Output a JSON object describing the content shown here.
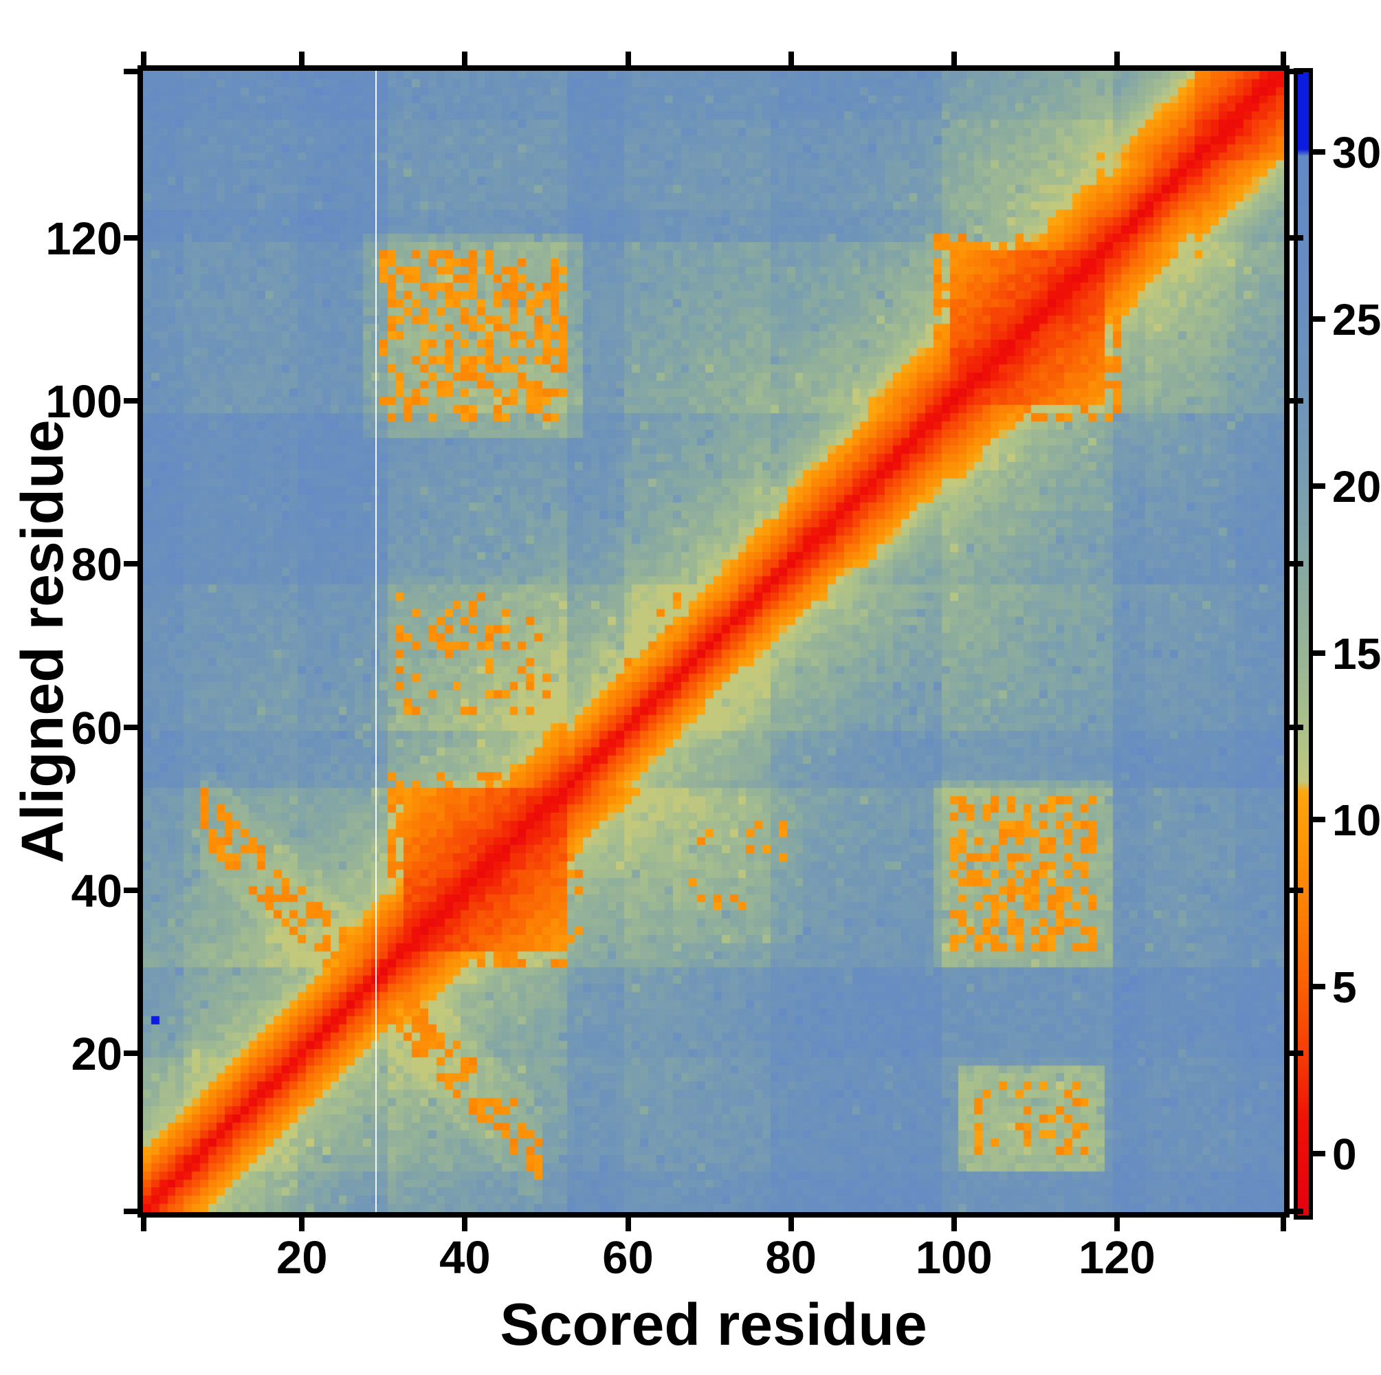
{
  "chart_data": {
    "type": "heatmap",
    "title": "",
    "xlabel": "Scored residue",
    "ylabel": "Aligned residue",
    "n_residues": 140,
    "x_range": [
      1,
      140
    ],
    "y_range": [
      1,
      140
    ],
    "x_ticks": [
      20,
      40,
      60,
      80,
      100,
      120
    ],
    "y_ticks": [
      20,
      40,
      60,
      80,
      100,
      120
    ],
    "grid": false,
    "legend_position": "right-colorbar",
    "colorbar": {
      "ticks": [
        0,
        5,
        10,
        15,
        20,
        25,
        30
      ],
      "vmin": -1.86,
      "vmax": 32.4,
      "orange_green_break": 11.0,
      "blue_cap_start": 30.1
    },
    "colormap_stops": [
      [
        -1.9,
        "#e4000f"
      ],
      [
        1.0,
        "#f01106"
      ],
      [
        3.0,
        "#f63d05"
      ],
      [
        5.0,
        "#fa5f04"
      ],
      [
        7.0,
        "#fc7c04"
      ],
      [
        9.0,
        "#fd9206"
      ],
      [
        10.85,
        "#fda50e"
      ],
      [
        11.15,
        "#c3c87c"
      ],
      [
        12.5,
        "#aec289"
      ],
      [
        14.5,
        "#9cb794"
      ],
      [
        16.5,
        "#8ead9d"
      ],
      [
        18.5,
        "#81a4a8"
      ],
      [
        20.5,
        "#779bb2"
      ],
      [
        23.0,
        "#6d93bb"
      ],
      [
        26.0,
        "#678dc2"
      ],
      [
        29.9,
        "#6389c7"
      ],
      [
        30.1,
        "#0c1be0"
      ],
      [
        32.4,
        "#0c1be0"
      ]
    ],
    "regions": {
      "low_error_diagonal": "red band along main diagonal, value near 0-3",
      "domain_blocks": [
        [
          33,
          52
        ],
        [
          100,
          118
        ]
      ],
      "off_diagonal_orange_patches": [
        {
          "x": [
            30,
            52
          ],
          "y": [
            98,
            118
          ]
        },
        {
          "x": [
            100,
            117
          ],
          "y": [
            33,
            51
          ]
        },
        {
          "x": [
            103,
            116
          ],
          "y": [
            8,
            16
          ]
        },
        {
          "x": [
            32,
            50
          ],
          "y": [
            62,
            76
          ]
        },
        {
          "x": [
            68,
            79
          ],
          "y": [
            36,
            49
          ]
        }
      ],
      "antidiagonal_cross": {
        "x_plus_y": 57,
        "x_extent": [
          8,
          49
        ]
      },
      "outlier_blue_cell": {
        "x": 2,
        "y": 24,
        "value": 32
      },
      "white_artifact_line_at_scored_residue": 29
    },
    "render_model": {
      "seed": 42,
      "background": {
        "base": 12.4,
        "amp": 13.6,
        "d0": 5,
        "tau": 24,
        "band_drop": 2.8,
        "noise": 1.3
      },
      "green_bands": [
        [
          6,
          19,
          0.5
        ],
        [
          31,
          52,
          1.0
        ],
        [
          60,
          77,
          0.7
        ],
        [
          99,
          119,
          1.0
        ],
        [
          124,
          134,
          0.5
        ]
      ],
      "diag_segments": [
        [
          1,
          32,
          1.45
        ],
        [
          33,
          52,
          0.9
        ],
        [
          53,
          79,
          1.5
        ],
        [
          80,
          99,
          1.2
        ],
        [
          100,
          118,
          0.9
        ],
        [
          119,
          129,
          1.25
        ],
        [
          130,
          140,
          0.8
        ]
      ],
      "domains": [
        {
          "range": [
            33,
            52
          ],
          "fringe_p": 0.45
        },
        {
          "range": [
            100,
            118
          ],
          "fringe_p": 0.45
        }
      ],
      "cross": {
        "s": 57,
        "hw": 3,
        "x0": 8,
        "x1": 49,
        "p": 0.5,
        "halo": 2.0
      },
      "patches": [
        {
          "x": [
            30,
            52
          ],
          "y": [
            98,
            118
          ],
          "p": 0.45,
          "halo": 4.5
        },
        {
          "x": [
            100,
            117
          ],
          "y": [
            33,
            51
          ],
          "p": 0.5,
          "halo": 4.5
        },
        {
          "x": [
            103,
            116
          ],
          "y": [
            8,
            16
          ],
          "p": 0.35,
          "halo": 7.5
        },
        {
          "x": [
            32,
            50
          ],
          "y": [
            62,
            76
          ],
          "p": 0.16,
          "halo": 1.2
        },
        {
          "x": [
            68,
            79
          ],
          "y": [
            36,
            49
          ],
          "p": 0.14,
          "halo": 1.2
        },
        {
          "x": [
            58,
            64
          ],
          "y": [
            62,
            68
          ],
          "p": 0.22,
          "halo": 1.0
        },
        {
          "x": [
            63,
            68
          ],
          "y": [
            70,
            76
          ],
          "p": 0.15,
          "halo": 1.0
        }
      ],
      "speckle_v0": 7.9,
      "speckle_span": 2.6,
      "outliers": [
        {
          "x": 2,
          "y": 24,
          "v": 32
        }
      ],
      "white_line_residue_boundary": 28.5
    }
  }
}
